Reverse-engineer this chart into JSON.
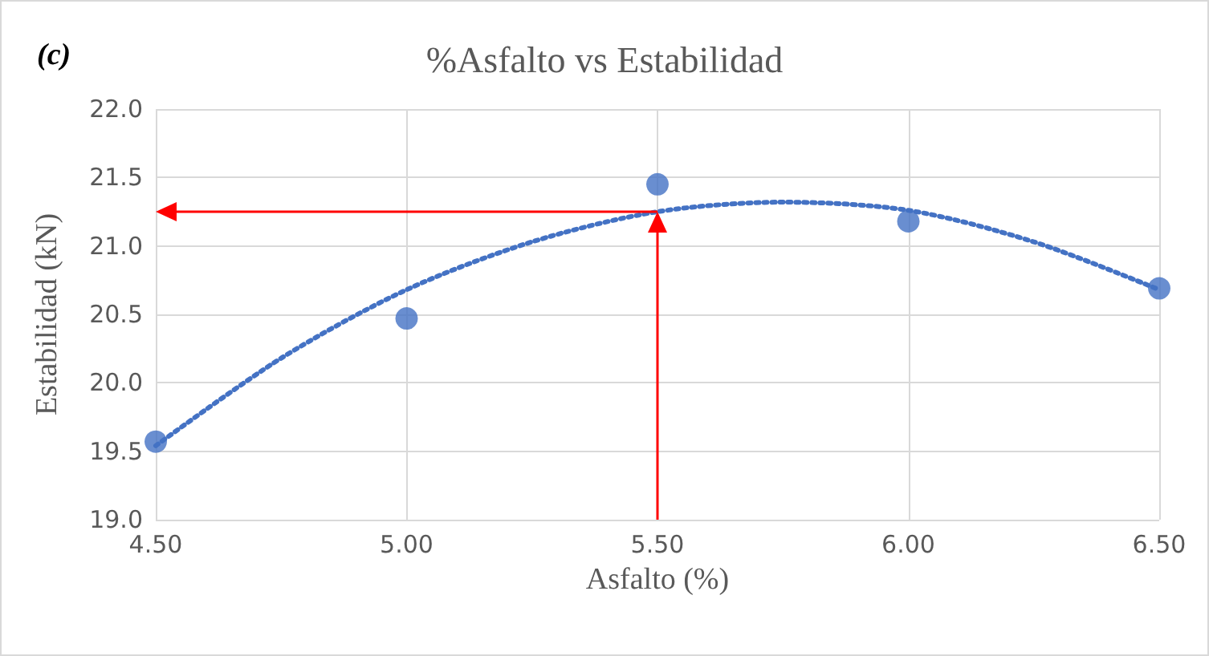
{
  "chart_data": {
    "type": "scatter",
    "title": "%Asfalto vs Estabilidad",
    "xlabel": "Asfalto (%)",
    "ylabel": "Estabilidad (kN)",
    "annotations": [
      "(c)"
    ],
    "xlim": [
      4.5,
      6.5
    ],
    "xticks": [
      {
        "value": 4.5,
        "label": "4.50"
      },
      {
        "value": 5,
        "label": "5.00"
      },
      {
        "value": 5.5,
        "label": "5.50"
      },
      {
        "value": 6,
        "label": "6.00"
      },
      {
        "value": 6.5,
        "label": "6.50"
      }
    ],
    "ylim": [
      19,
      22
    ],
    "yticks": [
      {
        "value": 19,
        "label": "19.0"
      },
      {
        "value": 19.5,
        "label": "19.5"
      },
      {
        "value": 20,
        "label": "20.0"
      },
      {
        "value": 20.5,
        "label": "20.5"
      },
      {
        "value": 21,
        "label": "21.0"
      },
      {
        "value": 21.5,
        "label": "21.5"
      },
      {
        "value": 22,
        "label": "22.0"
      }
    ],
    "grid": true,
    "series": [
      {
        "marker": "circle",
        "color": "#4472c4",
        "x": [
          4.5,
          5,
          5.5,
          6,
          6.5
        ],
        "values": [
          19.57,
          20.47,
          21.45,
          21.18,
          20.69
        ]
      },
      {
        "type": "line",
        "marker": "none",
        "line_style": "dotted",
        "color": "#4472c4",
        "x": [
          4.5,
          4.75,
          5,
          5.25,
          5.5,
          5.75,
          6,
          6.25,
          6.5
        ],
        "values": [
          19.54,
          20.18,
          20.68,
          21.03,
          21.25,
          21.32,
          21.26,
          21.03,
          20.68
        ]
      }
    ],
    "ref_lines": [
      {
        "axis": "x",
        "value": 5.5,
        "color": "#ff0000"
      },
      {
        "axis": "y",
        "value": 21.25,
        "color": "#ff0000"
      }
    ]
  }
}
